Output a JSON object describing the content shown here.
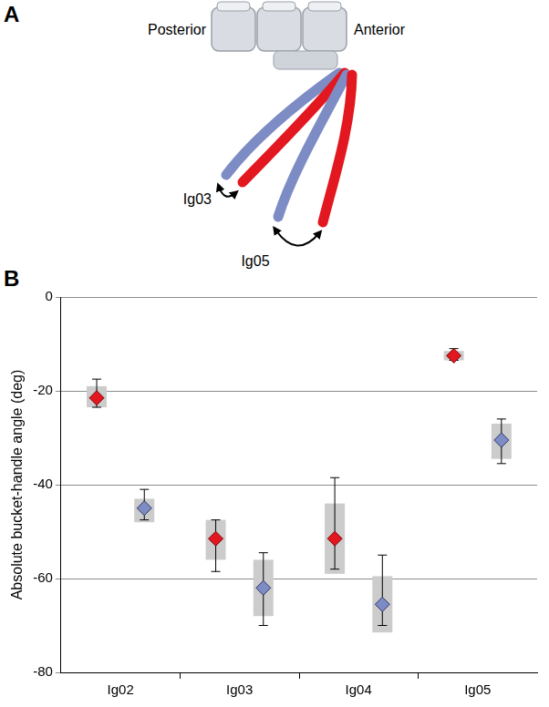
{
  "diagram": {
    "panel": "A",
    "labels": {
      "posterior": "Posterior",
      "anterior": "Anterior",
      "rib_upper": "Ig03",
      "rib_lower": "Ig05"
    }
  },
  "chart_data": {
    "panel": "B",
    "type": "scatter",
    "y_label": "Absolute bucket-handle angle (deg)",
    "categories": [
      "Ig02",
      "Ig03",
      "Ig04",
      "Ig05"
    ],
    "series": [
      {
        "color": "#e3171f",
        "marker": "diamond",
        "values": [
          -21.5,
          -51.5,
          -51.5,
          -12.5
        ],
        "whisker_low": [
          -23.5,
          -58.5,
          -58,
          -13.5
        ],
        "whisker_high": [
          -17.5,
          -47.5,
          -38.5,
          -11
        ],
        "box_low": [
          -23.5,
          -56,
          -59,
          -13.5
        ],
        "box_high": [
          -19,
          -47.5,
          -44,
          -11.5
        ]
      },
      {
        "color": "#7d8cc4",
        "marker": "diamond",
        "values": [
          -45,
          -62,
          -65.5,
          -30.5
        ],
        "whisker_low": [
          -47.5,
          -70,
          -70,
          -35.5
        ],
        "whisker_high": [
          -41,
          -54.5,
          -55,
          -26
        ],
        "box_low": [
          -48,
          -68,
          -71.5,
          -34.5
        ],
        "box_high": [
          -43,
          -56,
          -59.5,
          -27
        ]
      }
    ],
    "ylim": [
      -80,
      0
    ],
    "yticks": [
      -80,
      -60,
      -40,
      -20,
      0
    ],
    "grid": true
  }
}
